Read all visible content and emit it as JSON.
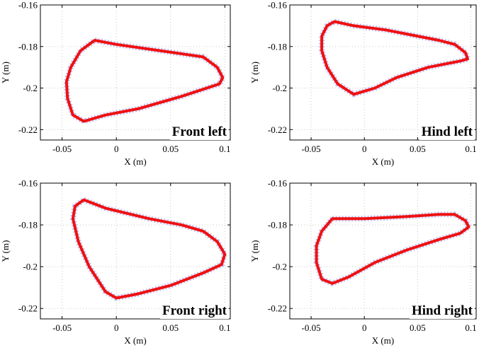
{
  "chart_data": [
    {
      "type": "line",
      "label": "Front left",
      "xlabel": "X (m)",
      "ylabel": "Y (m)",
      "xlim": [
        -0.07,
        0.105
      ],
      "ylim": [
        -0.225,
        -0.16
      ],
      "xticks": [
        -0.05,
        0,
        0.05,
        0.1
      ],
      "xtick_labels": [
        "-0.05",
        "0",
        "0.05",
        "0.1"
      ],
      "yticks": [
        -0.16,
        -0.18,
        -0.2,
        -0.22
      ],
      "ytick_labels": [
        "-0.16",
        "-0.18",
        "-0.2",
        "-0.22"
      ],
      "grid": true,
      "colors": {
        "mean": "#ee1111",
        "samples": "#b9bdf6"
      },
      "x": [
        -0.02,
        0.0,
        0.04,
        0.08,
        0.093,
        0.098,
        0.095,
        0.06,
        0.02,
        -0.01,
        -0.03,
        -0.04,
        -0.045,
        -0.046,
        -0.042,
        -0.033,
        -0.02
      ],
      "y": [
        -0.177,
        -0.179,
        -0.182,
        -0.185,
        -0.19,
        -0.195,
        -0.198,
        -0.204,
        -0.21,
        -0.213,
        -0.216,
        -0.213,
        -0.205,
        -0.197,
        -0.19,
        -0.182,
        -0.177
      ]
    },
    {
      "type": "line",
      "label": "Hind left",
      "xlabel": "X (m)",
      "ylabel": "Y (m)",
      "xlim": [
        -0.07,
        0.105
      ],
      "ylim": [
        -0.225,
        -0.16
      ],
      "xticks": [
        -0.05,
        0,
        0.05,
        0.1
      ],
      "xtick_labels": [
        "-0.05",
        "0",
        "0.05",
        "0.1"
      ],
      "yticks": [
        -0.16,
        -0.18,
        -0.2,
        -0.22
      ],
      "ytick_labels": [
        "-0.16",
        "-0.18",
        "-0.2",
        "-0.22"
      ],
      "grid": true,
      "colors": {
        "mean": "#ee1111",
        "samples": "#b9bdf6"
      },
      "x": [
        -0.028,
        -0.01,
        0.02,
        0.05,
        0.07,
        0.085,
        0.095,
        0.097,
        0.09,
        0.06,
        0.03,
        0.01,
        -0.01,
        -0.025,
        -0.035,
        -0.04,
        -0.04,
        -0.035,
        -0.028
      ],
      "y": [
        -0.168,
        -0.17,
        -0.172,
        -0.175,
        -0.177,
        -0.179,
        -0.183,
        -0.186,
        -0.187,
        -0.19,
        -0.195,
        -0.2,
        -0.203,
        -0.198,
        -0.19,
        -0.182,
        -0.175,
        -0.17,
        -0.168
      ]
    },
    {
      "type": "line",
      "label": "Front right",
      "xlabel": "X (m)",
      "ylabel": "Y (m)",
      "xlim": [
        -0.07,
        0.105
      ],
      "ylim": [
        -0.225,
        -0.16
      ],
      "xticks": [
        -0.05,
        0,
        0.05,
        0.1
      ],
      "xtick_labels": [
        "-0.05",
        "0",
        "0.05",
        "0.1"
      ],
      "yticks": [
        -0.16,
        -0.18,
        -0.2,
        -0.22
      ],
      "ytick_labels": [
        "-0.16",
        "-0.18",
        "-0.2",
        "-0.22"
      ],
      "grid": true,
      "colors": {
        "mean": "#ee1111",
        "samples": "#b9bdf6"
      },
      "x": [
        -0.03,
        -0.01,
        0.03,
        0.06,
        0.08,
        0.093,
        0.1,
        0.097,
        0.08,
        0.05,
        0.02,
        0.0,
        -0.01,
        -0.025,
        -0.035,
        -0.04,
        -0.038,
        -0.03
      ],
      "y": [
        -0.168,
        -0.172,
        -0.177,
        -0.18,
        -0.183,
        -0.188,
        -0.194,
        -0.199,
        -0.203,
        -0.209,
        -0.213,
        -0.215,
        -0.212,
        -0.2,
        -0.188,
        -0.177,
        -0.171,
        -0.168
      ]
    },
    {
      "type": "line",
      "label": "Hind right",
      "xlabel": "X (m)",
      "ylabel": "Y (m)",
      "xlim": [
        -0.07,
        0.105
      ],
      "ylim": [
        -0.225,
        -0.16
      ],
      "xticks": [
        -0.05,
        0,
        0.05,
        0.1
      ],
      "xtick_labels": [
        "-0.05",
        "0",
        "0.05",
        "0.1"
      ],
      "yticks": [
        -0.16,
        -0.18,
        -0.2,
        -0.22
      ],
      "ytick_labels": [
        "-0.16",
        "-0.18",
        "-0.2",
        "-0.22"
      ],
      "grid": true,
      "colors": {
        "mean": "#ee1111",
        "samples": "#b9bdf6"
      },
      "x": [
        -0.03,
        0.0,
        0.04,
        0.07,
        0.085,
        0.095,
        0.098,
        0.09,
        0.07,
        0.04,
        0.01,
        -0.015,
        -0.03,
        -0.04,
        -0.045,
        -0.045,
        -0.04,
        -0.03
      ],
      "y": [
        -0.177,
        -0.177,
        -0.176,
        -0.175,
        -0.175,
        -0.178,
        -0.181,
        -0.184,
        -0.187,
        -0.192,
        -0.198,
        -0.205,
        -0.208,
        -0.206,
        -0.198,
        -0.19,
        -0.183,
        -0.177
      ]
    }
  ]
}
